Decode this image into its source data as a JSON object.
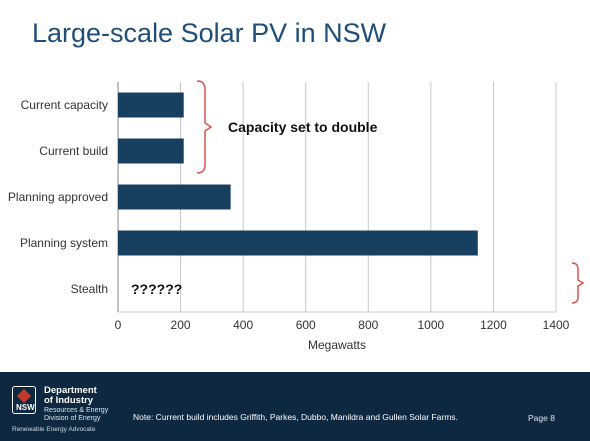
{
  "slide": {
    "title": "Large-scale Solar PV in NSW"
  },
  "chart_data": {
    "type": "bar",
    "orientation": "horizontal",
    "title": "",
    "xlabel": "Megawatts",
    "ylabel": "",
    "xlim": [
      0,
      1400
    ],
    "xticks": [
      0,
      200,
      400,
      600,
      800,
      1000,
      1200,
      1400
    ],
    "grid": true,
    "legend": "none",
    "bar_color": "#173f5f",
    "categories": [
      "Current capacity",
      "Current build",
      "Planning approved",
      "Planning system",
      "Stealth"
    ],
    "values": [
      210,
      210,
      360,
      1150,
      0
    ],
    "annotations": [
      {
        "text": "Capacity set to double",
        "applies_to": [
          "Current capacity",
          "Current build"
        ],
        "bracket_color": "#d9534f"
      },
      {
        "text": "??????",
        "applies_to": [
          "Stealth"
        ]
      },
      {
        "text": "",
        "applies_to": [
          "Stealth"
        ],
        "bracket_color": "#d9534f",
        "note": "bracket at right end"
      }
    ]
  },
  "footer": {
    "logo_abbrev": "NSW",
    "logo_title_line1": "Department",
    "logo_title_line2": "of Industry",
    "logo_subtitle_line1": "Resources & Energy",
    "logo_subtitle_line2": "Division of Energy",
    "tagline": "Renewable Energy Advocate",
    "note": "Note: Current build includes Griffith, Parkes, Dubbo, Manildra and Gullen Solar Farms.",
    "page": "Page 8",
    "background_color": "#0e2841"
  }
}
